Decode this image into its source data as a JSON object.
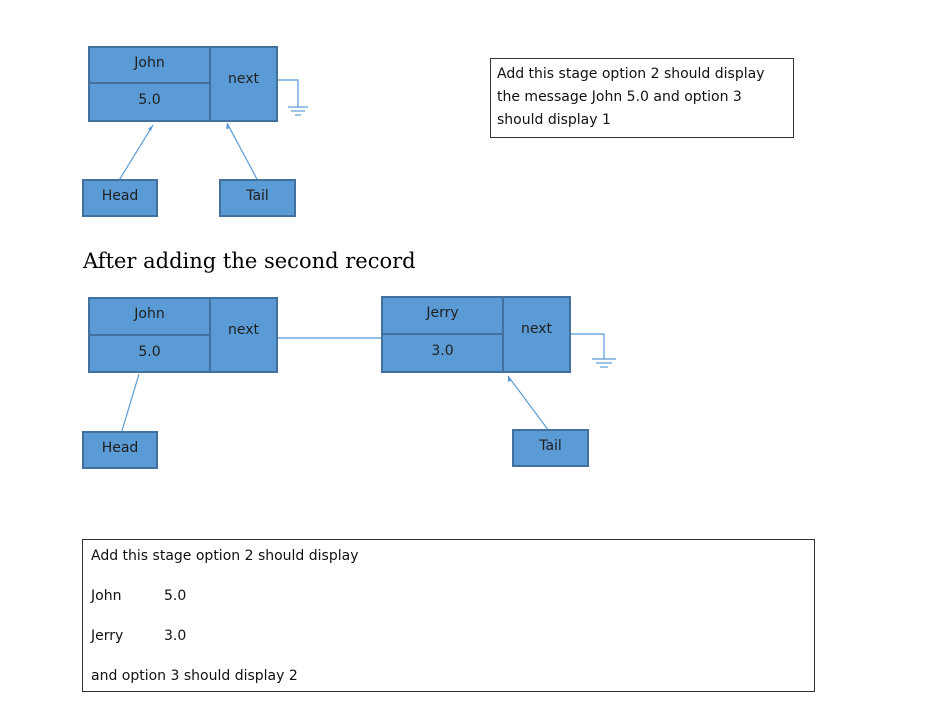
{
  "diagram1": {
    "node": {
      "name": "John",
      "value": "5.0",
      "next_label": "next"
    },
    "head_label": "Head",
    "tail_label": "Tail"
  },
  "note1": {
    "lines": [
      "Add this stage option 2 should display",
      "the message John  5.0  and option 3",
      "should display 1"
    ]
  },
  "heading": "After adding the second record",
  "diagram2": {
    "node1": {
      "name": "John",
      "value": "5.0",
      "next_label": "next"
    },
    "node2": {
      "name": "Jerry",
      "value": "3.0",
      "next_label": "next"
    },
    "head_label": "Head",
    "tail_label": "Tail"
  },
  "note2": {
    "intro": "Add this stage option 2 should display",
    "rows": [
      {
        "name": "John",
        "value": "5.0"
      },
      {
        "name": "Jerry",
        "value": "3.0"
      }
    ],
    "outro": "and option 3 should display 2"
  },
  "colors": {
    "node_fill": "#5b9bd5",
    "node_border": "#41719c",
    "connector": "#5b9bd5"
  }
}
